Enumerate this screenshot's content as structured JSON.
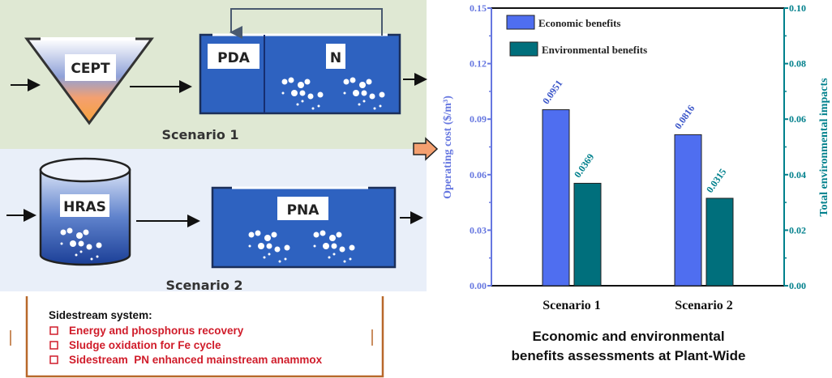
{
  "diagram": {
    "scenario1": {
      "label": "Scenario 1",
      "units": [
        "CEPT",
        "PDA",
        "N"
      ]
    },
    "scenario2": {
      "label": "Scenario 2",
      "units": [
        "HRAS",
        "PNA"
      ]
    },
    "sidestream": {
      "title": "Sidestream system:",
      "items": [
        "Energy and phosphorus recovery",
        "Sludge oxidation for Fe cycle",
        "Sidestream  PN enhanced mainstream anammox"
      ]
    },
    "caption": [
      "Economic and environmental",
      "benefits assessments at Plant-Wide"
    ]
  },
  "colors": {
    "scenario1_bg": "#dfe8d3",
    "scenario2_bg": "#e9eff9",
    "tank": "#2e62c0",
    "economic": "#4f6ef0",
    "environmental": "#006f7c",
    "sidestream_text": "#d01c2a",
    "frame": "#b8682a"
  },
  "chart_data": {
    "type": "bar",
    "categories": [
      "Scenario 1",
      "Scenario 2"
    ],
    "series": [
      {
        "name": "Economic benefits",
        "axis": "left",
        "values": [
          0.0951,
          0.0816
        ],
        "labels": [
          "0.0951",
          "0.0816"
        ]
      },
      {
        "name": "Environmental benefits",
        "axis": "right",
        "values": [
          0.0369,
          0.0315
        ],
        "labels": [
          "0.0369",
          "0.0315"
        ]
      }
    ],
    "ylabel_left": "Operating cost ($/m³)",
    "ylabel_right": "Total environmental impacts",
    "ylim_left": [
      0,
      0.15
    ],
    "ylim_right": [
      0,
      0.1
    ],
    "yticks_left": [
      "0.00",
      "0.03",
      "0.06",
      "0.09",
      "0.12",
      "0.15"
    ],
    "yticks_right": [
      "0.00",
      "0.02",
      "0.04",
      "0.06",
      "0.08",
      "0.10"
    ],
    "legend": "top-left",
    "grid": false
  }
}
